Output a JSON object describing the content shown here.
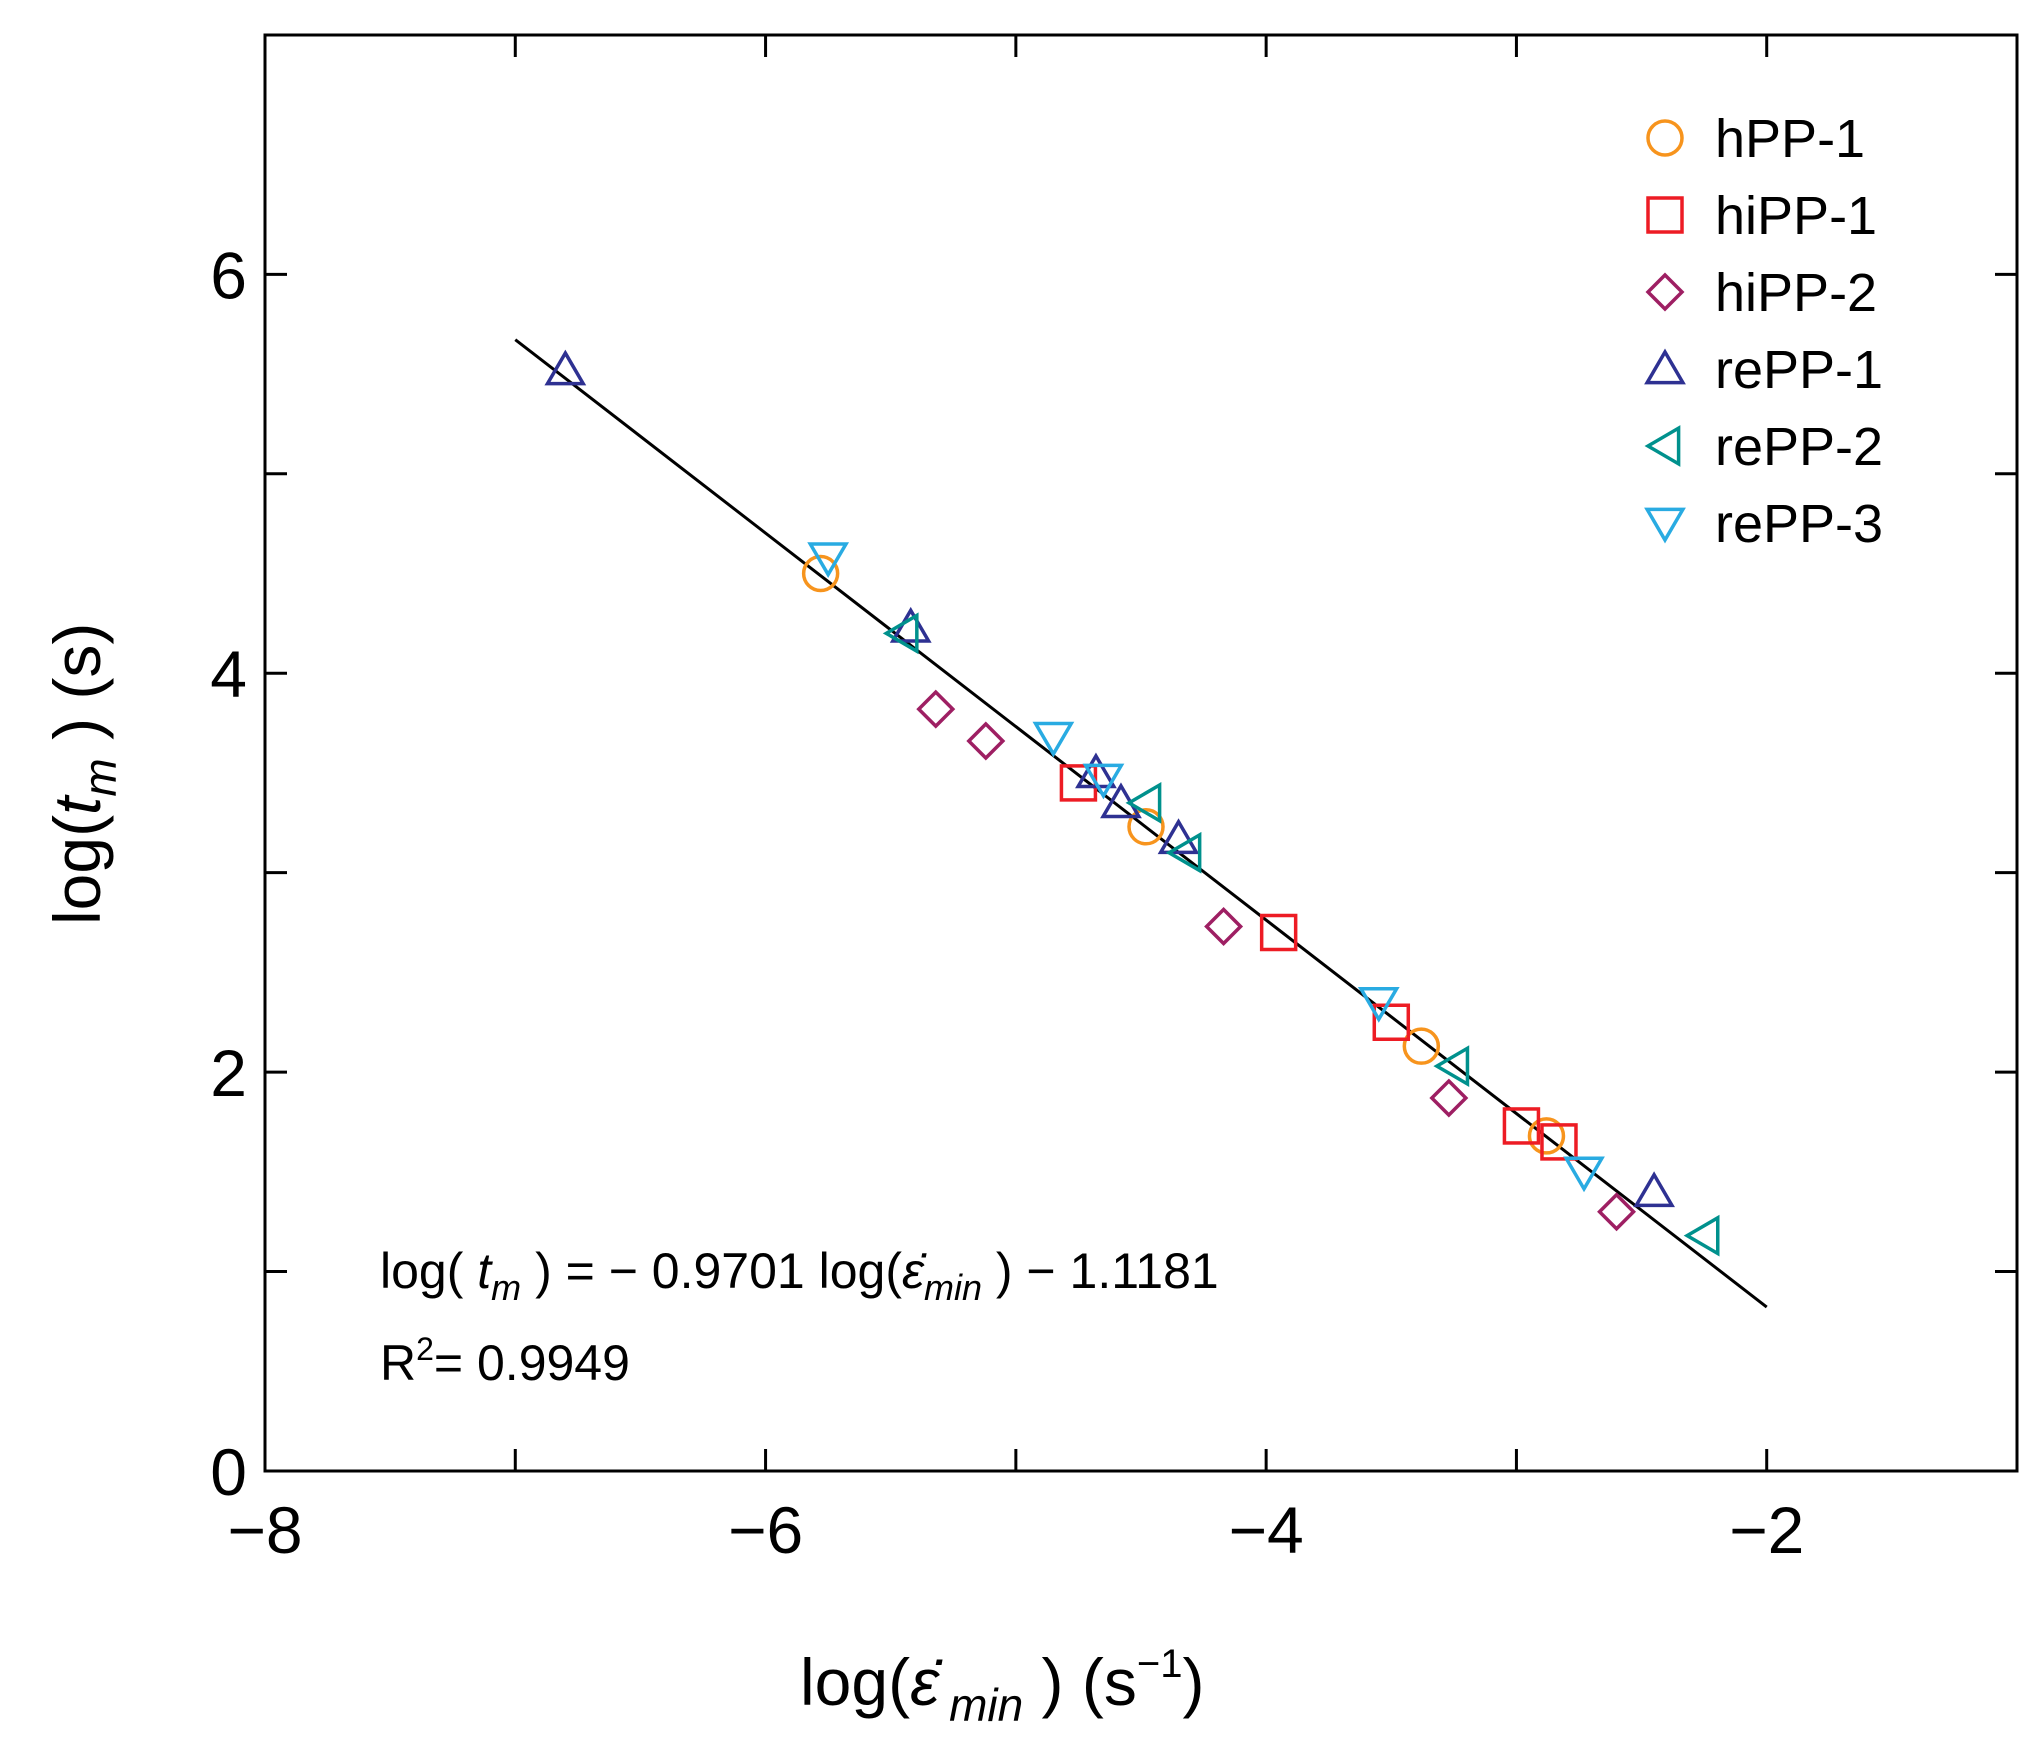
{
  "chart_data": {
    "type": "scatter",
    "title": "",
    "x_axis": {
      "range": [
        -8,
        -1
      ],
      "ticks": [
        -8,
        -6,
        -4,
        -2
      ],
      "tick_labels": [
        "−8",
        "−6",
        "−4",
        "−2"
      ],
      "label_prefix": "log(",
      "label_symbol": "ε̇",
      "label_sub": "min",
      "label_mid": " )  (s",
      "label_sup": "−1",
      "label_end": ")"
    },
    "y_axis": {
      "range": [
        0,
        7.2
      ],
      "ticks": [
        0,
        2,
        4,
        6
      ],
      "tick_labels": [
        "0",
        "2",
        "4",
        "6"
      ],
      "label_prefix": "log(",
      "label_symbol": "t",
      "label_sub": "m",
      "label_end": " )   (s)"
    },
    "series": [
      {
        "name": "hPP-1",
        "marker": "circle",
        "color": "#f7941d",
        "x": [
          -5.78,
          -4.48,
          -3.38,
          -2.88
        ],
        "y": [
          4.5,
          3.23,
          2.13,
          1.68
        ]
      },
      {
        "name": "hiPP-1",
        "marker": "square",
        "color": "#ed1c24",
        "x": [
          -4.75,
          -3.95,
          -3.5,
          -2.98,
          -2.83
        ],
        "y": [
          3.45,
          2.7,
          2.25,
          1.73,
          1.65
        ]
      },
      {
        "name": "hiPP-2",
        "marker": "diamond",
        "color": "#9e1f63",
        "x": [
          -5.32,
          -5.12,
          -4.17,
          -3.27,
          -2.6
        ],
        "y": [
          3.82,
          3.66,
          2.73,
          1.87,
          1.3
        ]
      },
      {
        "name": "rePP-1",
        "marker": "triangle-up",
        "color": "#2e3192",
        "x": [
          -6.8,
          -5.42,
          -4.68,
          -4.58,
          -4.35,
          -2.45
        ],
        "y": [
          5.52,
          4.23,
          3.5,
          3.35,
          3.17,
          1.4
        ]
      },
      {
        "name": "rePP-2",
        "marker": "triangle-left",
        "color": "#00918d",
        "x": [
          -5.45,
          -4.48,
          -4.32,
          -3.25,
          -2.25
        ],
        "y": [
          4.2,
          3.35,
          3.1,
          2.03,
          1.18
        ]
      },
      {
        "name": "rePP-3",
        "marker": "triangle-down",
        "color": "#29abe2",
        "x": [
          -5.75,
          -4.85,
          -4.65,
          -3.55,
          -2.73
        ],
        "y": [
          4.58,
          3.68,
          3.47,
          2.35,
          1.5
        ]
      }
    ],
    "fit_line": {
      "x": [
        -7.0,
        -2.0
      ],
      "y": [
        5.6726,
        0.8221
      ],
      "color": "#000000"
    },
    "annotations": {
      "equation_lhs_prefix": "log( ",
      "equation_lhs_symbol": "t",
      "equation_lhs_sub": "m",
      "equation_lhs_suffix": " ) = − 0.9701  log(",
      "equation_rhs_symbol": "ε̇",
      "equation_rhs_sub": "min",
      "equation_rhs_suffix": " ) − 1.1181",
      "r2_prefix": "R",
      "r2_sup": "2",
      "r2_value": "= 0.9949"
    },
    "legend": {
      "position": "top-right"
    }
  }
}
